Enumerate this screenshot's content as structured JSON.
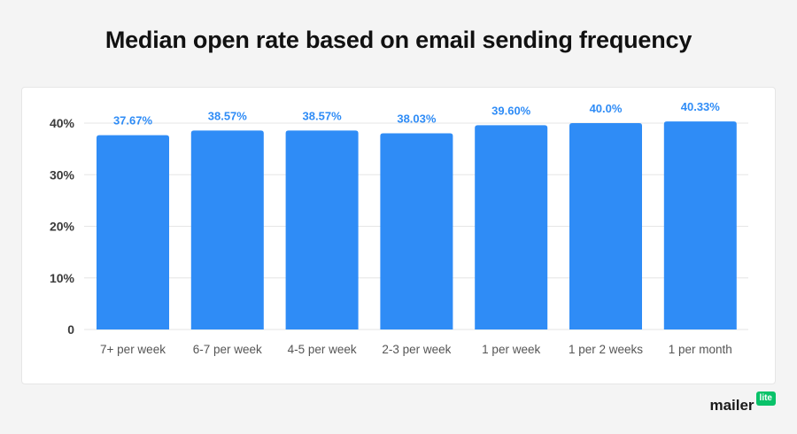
{
  "chart_data": {
    "type": "bar",
    "title": "Median open rate based on email sending frequency",
    "categories": [
      "7+ per week",
      "6-7 per week",
      "4-5 per week",
      "2-3 per week",
      "1 per week",
      "1 per 2 weeks",
      "1 per month"
    ],
    "values": [
      37.67,
      38.57,
      38.57,
      38.03,
      39.6,
      40.0,
      40.33
    ],
    "data_labels": [
      "37.67%",
      "38.57%",
      "38.57%",
      "38.03%",
      "39.60%",
      "40.0%",
      "40.33%"
    ],
    "y_ticks": [
      0,
      10,
      20,
      30,
      40
    ],
    "y_tick_labels": [
      "0",
      "10%",
      "20%",
      "30%",
      "40%"
    ],
    "ylim": [
      0,
      40
    ],
    "xlabel": "",
    "ylabel": "",
    "grid": true,
    "legend": "none",
    "colors": {
      "bar": "#2f8cf6",
      "label": "#2f8cf6",
      "grid": "#e6e6e6"
    }
  },
  "branding": {
    "logo_word": "mailer",
    "logo_badge": "lite",
    "badge_color": "#09c269"
  }
}
